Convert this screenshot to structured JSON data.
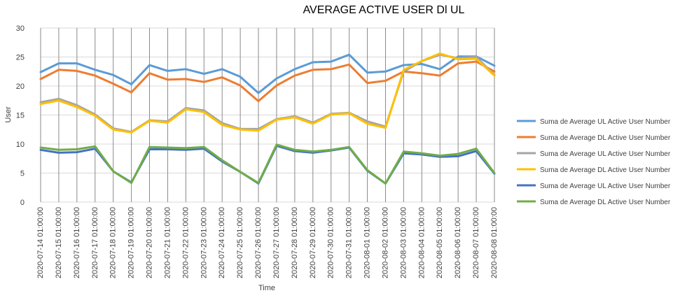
{
  "chart_data": {
    "type": "line",
    "title": "AVERAGE ACTIVE USER Dl UL",
    "xlabel": "Time",
    "ylabel": "User",
    "ylim": [
      0,
      30
    ],
    "yticks": [
      0,
      5,
      10,
      15,
      20,
      25,
      30
    ],
    "grid": true,
    "legend_position": "right",
    "categories": [
      "2020-07-14 01:00:00",
      "2020-07-15 01:00:00",
      "2020-07-16 01:00:00",
      "2020-07-17 01:00:00",
      "2020-07-18 01:00:00",
      "2020-07-19 01:00:00",
      "2020-07-20 01:00:00",
      "2020-07-21 01:00:00",
      "2020-07-22 01:00:00",
      "2020-07-23 01:00:00",
      "2020-07-24 01:00:00",
      "2020-07-25 01:00:00",
      "2020-07-26 01:00:00",
      "2020-07-27 01:00:00",
      "2020-07-28 01:00:00",
      "2020-07-29 01:00:00",
      "2020-07-30 01:00:00",
      "2020-07-31 01:00:00",
      "2020-08-01 01:00:00",
      "2020-08-02 01:00:00",
      "2020-08-03 01:00:00",
      "2020-08-04 01:00:00",
      "2020-08-05 01:00:00",
      "2020-08-06 01:00:00",
      "2020-08-07 01:00:00",
      "2020-08-08 01:00:00"
    ],
    "series": [
      {
        "name": "Suma de Average UL Active User Number",
        "color": "#5b9bd5",
        "values": [
          22.4,
          23.9,
          23.9,
          22.8,
          21.9,
          20.3,
          23.6,
          22.6,
          22.9,
          22.1,
          22.9,
          21.6,
          18.8,
          21.3,
          22.9,
          24.1,
          24.2,
          25.4,
          22.3,
          22.5,
          23.6,
          23.8,
          22.9,
          25.1,
          25.1,
          23.5
        ]
      },
      {
        "name": "Suma de Average DL Active User Number",
        "color": "#ed7d31",
        "values": [
          21.2,
          22.8,
          22.6,
          21.8,
          20.4,
          18.9,
          22.2,
          21.1,
          21.2,
          20.7,
          21.5,
          20.1,
          17.4,
          20.1,
          21.8,
          22.8,
          22.9,
          23.7,
          20.5,
          20.9,
          22.5,
          22.2,
          21.8,
          23.9,
          24.2,
          22.5
        ]
      },
      {
        "name": "Suma de Average UL Active User Number",
        "color": "#a5a5a5",
        "values": [
          17.2,
          17.8,
          16.7,
          15.1,
          12.7,
          12.1,
          14.1,
          13.9,
          16.2,
          15.8,
          13.6,
          12.6,
          12.6,
          14.3,
          14.8,
          13.7,
          15.2,
          15.4,
          13.9,
          13.0,
          22.5,
          24.3,
          25.4,
          24.8,
          25.0,
          21.9
        ]
      },
      {
        "name": "Suma de Average DL Active User Number",
        "color": "#ffc000",
        "values": [
          16.9,
          17.5,
          16.4,
          14.9,
          12.5,
          12.0,
          14.0,
          13.7,
          16.0,
          15.5,
          13.3,
          12.5,
          12.3,
          14.2,
          14.6,
          13.5,
          15.1,
          15.3,
          13.5,
          12.8,
          22.8,
          24.3,
          25.6,
          24.6,
          24.7,
          21.8
        ]
      },
      {
        "name": "Suma de Average UL Active User Number",
        "color": "#4472c4",
        "values": [
          9.0,
          8.5,
          8.6,
          9.2,
          5.3,
          3.4,
          9.1,
          9.1,
          9.0,
          9.2,
          7.0,
          5.2,
          3.2,
          9.7,
          8.8,
          8.5,
          8.9,
          9.4,
          5.4,
          3.2,
          8.4,
          8.2,
          7.8,
          7.9,
          8.8,
          4.9
        ]
      },
      {
        "name": "Suma de Average DL Active User Number",
        "color": "#70ad47",
        "values": [
          9.4,
          9.0,
          9.1,
          9.6,
          5.3,
          3.3,
          9.5,
          9.4,
          9.3,
          9.5,
          7.2,
          5.2,
          3.3,
          9.9,
          9.0,
          8.7,
          9.0,
          9.5,
          5.5,
          3.2,
          8.7,
          8.4,
          8.0,
          8.3,
          9.2,
          5.0
        ]
      }
    ]
  }
}
